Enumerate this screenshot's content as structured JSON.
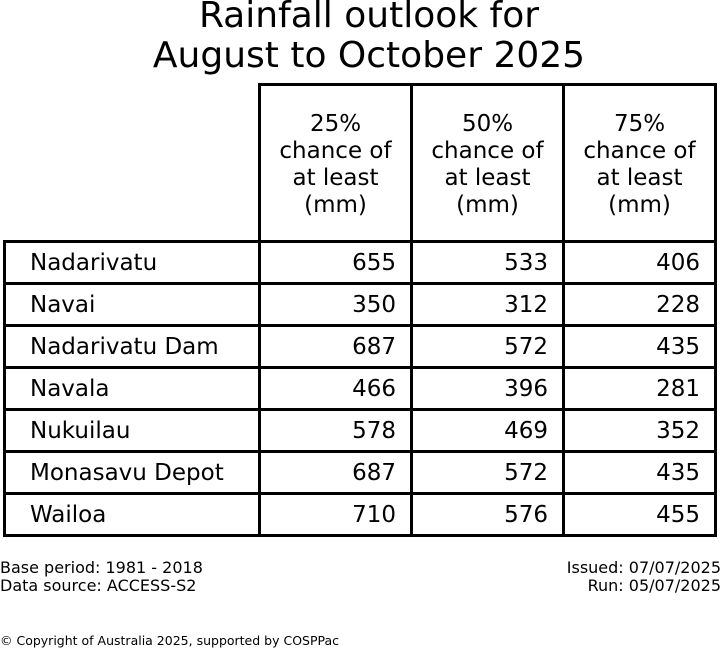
{
  "title_lines": [
    "Rainfall outlook for",
    "August to October 2025"
  ],
  "chart_data": {
    "type": "table",
    "title": "Rainfall outlook for August to October 2025",
    "columns": [
      [
        "25%",
        "chance of",
        "at least",
        "(mm)"
      ],
      [
        "50%",
        "chance of",
        "at least",
        "(mm)"
      ],
      [
        "75%",
        "chance of",
        "at least",
        "(mm)"
      ]
    ],
    "rows": [
      {
        "name": "Nadarivatu",
        "values": [
          "655",
          "533",
          "406"
        ]
      },
      {
        "name": "Navai",
        "values": [
          "350",
          "312",
          "228"
        ]
      },
      {
        "name": "Nadarivatu Dam",
        "values": [
          "687",
          "572",
          "435"
        ]
      },
      {
        "name": "Navala",
        "values": [
          "466",
          "396",
          "281"
        ]
      },
      {
        "name": "Nukuilau",
        "values": [
          "578",
          "469",
          "352"
        ]
      },
      {
        "name": "Monasavu Depot",
        "values": [
          "687",
          "572",
          "435"
        ]
      },
      {
        "name": "Wailoa",
        "values": [
          "710",
          "576",
          "455"
        ]
      }
    ]
  },
  "footer": {
    "base_period": "Base period: 1981 - 2018",
    "data_source": "Data source: ACCESS-S2",
    "issued": "Issued: 07/07/2025",
    "run": "Run: 05/07/2025",
    "copyright": "© Copyright of Australia 2025, supported by COSPPac"
  }
}
